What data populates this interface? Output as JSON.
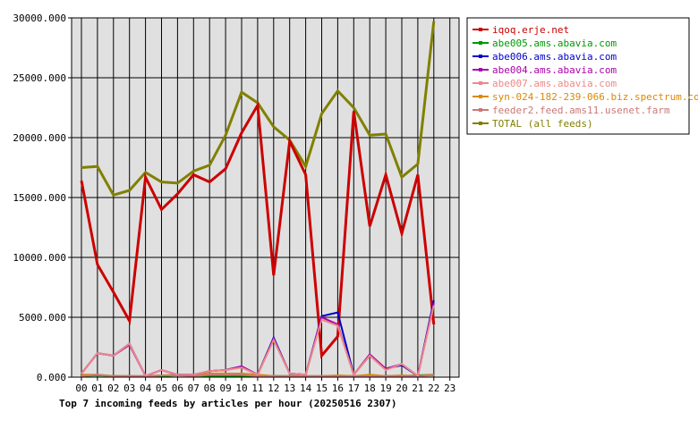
{
  "chart_data": {
    "type": "line",
    "title": "Top 7 incoming feeds by articles per hour (20250516 2307)",
    "xlabel": "",
    "ylabel": "",
    "categories": [
      "00",
      "01",
      "02",
      "03",
      "04",
      "05",
      "06",
      "07",
      "08",
      "09",
      "10",
      "11",
      "12",
      "13",
      "14",
      "15",
      "16",
      "17",
      "18",
      "19",
      "20",
      "21",
      "22",
      "23"
    ],
    "y_tick_labels": [
      "0.000",
      "5000.000",
      "10000.000",
      "15000.000",
      "20000.000",
      "25000.000",
      "30000.000"
    ],
    "ylim": [
      0,
      30000
    ],
    "grid": true,
    "legend_position": "right",
    "series": [
      {
        "name": "iqoq.erje.net",
        "color": "#cc0000",
        "values": [
          16400,
          9400,
          7100,
          4700,
          16700,
          14000,
          15300,
          16900,
          16300,
          17400,
          20400,
          22700,
          8500,
          19700,
          16900,
          1800,
          3400,
          22200,
          12600,
          16900,
          12000,
          16900,
          4400,
          null
        ]
      },
      {
        "name": "abe005.ams.abavia.com",
        "color": "#009900",
        "values": [
          100,
          150,
          100,
          80,
          60,
          80,
          150,
          150,
          100,
          80,
          100,
          100,
          100,
          100,
          80,
          60,
          100,
          100,
          100,
          100,
          100,
          150,
          200,
          null
        ]
      },
      {
        "name": "abe006.ams.abavia.com",
        "color": "#0000cc",
        "values": [
          300,
          2000,
          1800,
          2800,
          100,
          600,
          200,
          200,
          500,
          600,
          900,
          200,
          3300,
          300,
          200,
          5100,
          5400,
          200,
          1800,
          700,
          1000,
          100,
          6400,
          null
        ]
      },
      {
        "name": "abe004.ams.abavia.com",
        "color": "#aa00aa",
        "values": [
          300,
          2000,
          1800,
          2700,
          100,
          600,
          200,
          200,
          500,
          600,
          900,
          200,
          3200,
          300,
          200,
          5000,
          4400,
          200,
          1900,
          700,
          1100,
          100,
          6200,
          null
        ]
      },
      {
        "name": "abe007.ams.abavia.com",
        "color": "#ee8888",
        "values": [
          300,
          2000,
          1800,
          2800,
          100,
          600,
          200,
          200,
          500,
          600,
          800,
          200,
          3100,
          300,
          200,
          4800,
          4300,
          200,
          1800,
          600,
          1100,
          100,
          6000,
          null
        ]
      },
      {
        "name": "syn-024-182-239-066.biz.spectrum.com",
        "color": "#dd8800",
        "values": [
          200,
          200,
          100,
          100,
          100,
          150,
          200,
          200,
          300,
          300,
          300,
          200,
          100,
          100,
          100,
          100,
          150,
          100,
          200,
          100,
          150,
          100,
          200,
          null
        ]
      },
      {
        "name": "feeder2.feed.ams11.usenet.farm",
        "color": "#cc7777",
        "values": [
          100,
          200,
          100,
          100,
          100,
          150,
          150,
          100,
          200,
          200,
          200,
          100,
          100,
          100,
          100,
          100,
          100,
          100,
          100,
          100,
          100,
          100,
          150,
          null
        ]
      },
      {
        "name": "TOTAL (all feeds)",
        "color": "#808000",
        "values": [
          17500,
          17600,
          15200,
          15600,
          17100,
          16300,
          16200,
          17200,
          17700,
          20200,
          23800,
          22900,
          20900,
          19800,
          17600,
          22000,
          23900,
          22500,
          20200,
          20300,
          16700,
          17800,
          29700,
          null
        ]
      }
    ]
  }
}
